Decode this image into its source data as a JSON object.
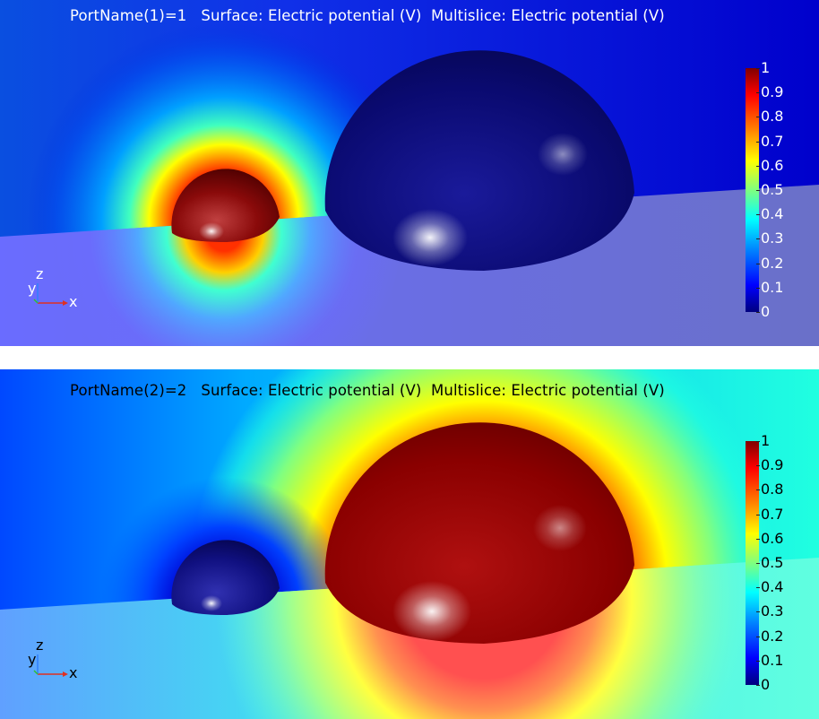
{
  "plots": [
    {
      "title": "PortName(1)=1   Surface: Electric potential (V)  Multislice: Electric potential (V)",
      "colorbar_ticks": [
        "1",
        "0.9",
        "0.8",
        "0.7",
        "0.6",
        "0.5",
        "0.4",
        "0.3",
        "0.2",
        "0.1",
        "0"
      ],
      "axes": {
        "x": "x",
        "y": "y",
        "z": "z"
      },
      "small_sphere_potential": 1,
      "large_sphere_potential": 0
    },
    {
      "title": "PortName(2)=2   Surface: Electric potential (V)  Multislice: Electric potential (V)",
      "colorbar_ticks": [
        "1",
        "0.9",
        "0.8",
        "0.7",
        "0.6",
        "0.5",
        "0.4",
        "0.3",
        "0.2",
        "0.1",
        "0"
      ],
      "axes": {
        "x": "x",
        "y": "y",
        "z": "z"
      },
      "small_sphere_potential": 0,
      "large_sphere_potential": 1
    }
  ],
  "colors": {
    "jet": [
      "#00007f",
      "#0000ff",
      "#007fff",
      "#00ffff",
      "#7fff7f",
      "#ffff00",
      "#ff7f00",
      "#ff0000",
      "#7f0000"
    ]
  }
}
